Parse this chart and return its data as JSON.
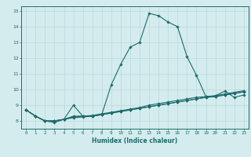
{
  "xlabel": "Humidex (Indice chaleur)",
  "bg_color": "#d4ecee",
  "grid_color": "#b8d8db",
  "line_color": "#1d6b6b",
  "xlim": [
    -0.5,
    23.5
  ],
  "ylim": [
    7.5,
    15.3
  ],
  "yticks": [
    8,
    9,
    10,
    11,
    12,
    13,
    14,
    15
  ],
  "xticks": [
    0,
    1,
    2,
    3,
    4,
    5,
    6,
    7,
    8,
    9,
    10,
    11,
    12,
    13,
    14,
    15,
    16,
    17,
    18,
    19,
    20,
    21,
    22,
    23
  ],
  "series": [
    [
      8.7,
      8.3,
      8.0,
      7.9,
      8.1,
      9.0,
      8.3,
      8.3,
      8.4,
      10.3,
      11.6,
      12.7,
      13.0,
      14.85,
      14.7,
      14.3,
      14.0,
      12.1,
      10.9,
      9.55,
      9.6,
      9.9,
      9.5,
      9.65
    ],
    [
      8.7,
      8.3,
      8.0,
      8.0,
      8.1,
      8.2,
      8.25,
      8.3,
      8.4,
      8.5,
      8.6,
      8.7,
      8.8,
      8.9,
      9.0,
      9.1,
      9.2,
      9.3,
      9.4,
      9.5,
      9.55,
      9.65,
      9.75,
      9.85
    ],
    [
      8.7,
      8.3,
      8.0,
      8.0,
      8.1,
      8.25,
      8.3,
      8.3,
      8.4,
      8.5,
      8.6,
      8.7,
      8.8,
      8.9,
      9.0,
      9.1,
      9.2,
      9.3,
      9.4,
      9.5,
      9.55,
      9.65,
      9.75,
      9.85
    ],
    [
      8.7,
      8.3,
      8.0,
      8.0,
      8.1,
      8.3,
      8.3,
      8.35,
      8.45,
      8.55,
      8.65,
      8.75,
      8.85,
      9.0,
      9.1,
      9.2,
      9.3,
      9.4,
      9.5,
      9.55,
      9.6,
      9.72,
      9.82,
      9.92
    ]
  ]
}
